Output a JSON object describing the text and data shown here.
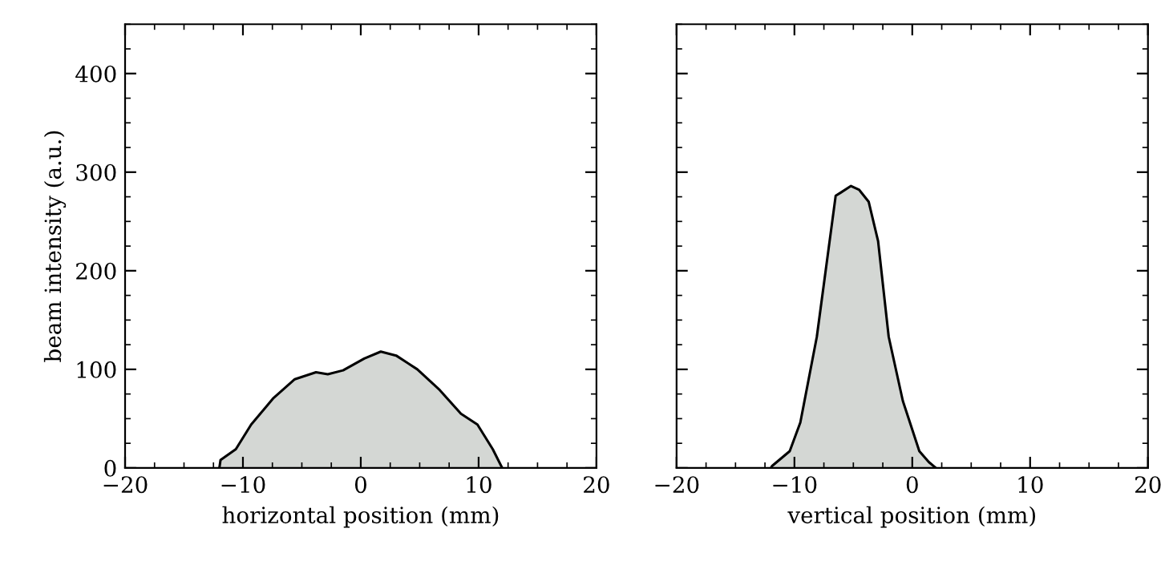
{
  "chart_data": [
    {
      "type": "area",
      "xlabel": "horizontal position (mm)",
      "ylabel": "beam intensity (a.u.)",
      "series": [
        {
          "color": "#d4d7d4",
          "x": [
            -12.0,
            -11.9,
            -10.6,
            -9.3,
            -7.4,
            -5.6,
            -3.8,
            -2.8,
            -1.5,
            0.3,
            1.7,
            3.0,
            4.8,
            6.7,
            8.5,
            9.9,
            11.2,
            12.0
          ],
          "values": [
            0,
            8,
            19,
            44,
            71,
            90,
            97,
            95,
            99,
            111,
            118,
            114,
            100,
            79,
            55,
            44,
            19,
            0
          ]
        }
      ],
      "xlim": [
        -20,
        20
      ],
      "ylim": [
        0,
        450
      ],
      "xticks": [
        -20,
        -10,
        0,
        10,
        20
      ],
      "yticks": [
        0,
        100,
        200,
        300,
        400
      ],
      "grid": false,
      "legend": false
    },
    {
      "type": "area",
      "xlabel": "vertical position (mm)",
      "series": [
        {
          "color": "#d4d7d4",
          "x": [
            -12.0,
            -11.9,
            -10.4,
            -9.5,
            -8.1,
            -6.5,
            -6.1,
            -5.2,
            -4.5,
            -3.7,
            -2.9,
            -2.0,
            -0.8,
            0.6,
            1.4,
            2.0
          ],
          "values": [
            0,
            2,
            17,
            46,
            133,
            276,
            279,
            286,
            282,
            270,
            230,
            133,
            68,
            17,
            6,
            0
          ]
        }
      ],
      "xlim": [
        -20,
        20
      ],
      "ylim": [
        0,
        450
      ],
      "xticks": [
        -20,
        -10,
        0,
        10,
        20
      ],
      "yticks": [
        0,
        100,
        200,
        300,
        400
      ],
      "tick_labels": "x",
      "grid": false,
      "legend": false
    }
  ]
}
